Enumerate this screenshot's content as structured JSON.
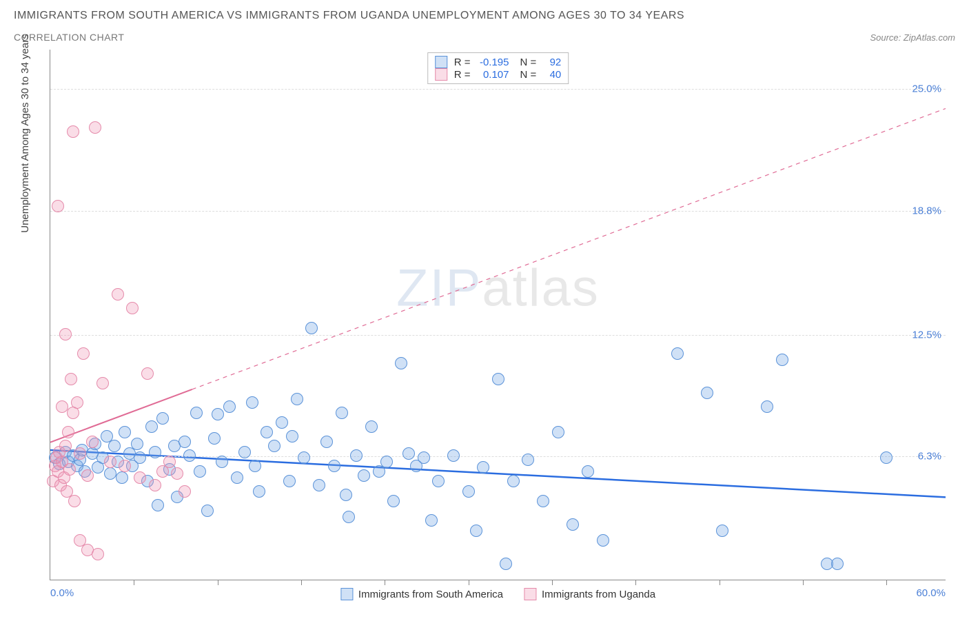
{
  "title": "IMMIGRANTS FROM SOUTH AMERICA VS IMMIGRANTS FROM UGANDA UNEMPLOYMENT AMONG AGES 30 TO 34 YEARS",
  "subtitle": "CORRELATION CHART",
  "source": "Source: ZipAtlas.com",
  "ylabel": "Unemployment Among Ages 30 to 34 years",
  "watermark_bold": "ZIP",
  "watermark_thin": "atlas",
  "chart": {
    "type": "scatter",
    "xlim": [
      0,
      60
    ],
    "ylim": [
      0,
      27
    ],
    "x_tick_positions": [
      5.6,
      11.2,
      16.8,
      22.4,
      28.0,
      33.6,
      39.2,
      44.8,
      50.4,
      56.0
    ],
    "y_gridlines": [
      6.3,
      12.5,
      18.8,
      25.0
    ],
    "y_tick_labels": [
      "6.3%",
      "12.5%",
      "18.8%",
      "25.0%"
    ],
    "x_min_label": "0.0%",
    "x_max_label": "60.0%",
    "background_color": "#ffffff",
    "grid_color": "#dddddd",
    "axis_color": "#888888",
    "tick_label_color": "#4a7fd6",
    "marker_radius": 9,
    "marker_stroke_width": 1.2,
    "series": [
      {
        "name": "Immigrants from South America",
        "label": "Immigrants from South America",
        "fill_color": "rgba(120,170,230,0.35)",
        "stroke_color": "#5a92d8",
        "trend_color": "#2b6de0",
        "trend_width": 2.5,
        "trend_y_at_xmin": 6.6,
        "trend_y_at_xmax": 4.2,
        "trend_solid_x_end": 60,
        "R": "-0.195",
        "N": "92",
        "points": [
          [
            0.3,
            6.2
          ],
          [
            0.6,
            5.9
          ],
          [
            1.0,
            6.5
          ],
          [
            1.2,
            6.0
          ],
          [
            1.5,
            6.3
          ],
          [
            1.8,
            5.8
          ],
          [
            2.0,
            6.1
          ],
          [
            2.1,
            6.6
          ],
          [
            2.3,
            5.5
          ],
          [
            2.8,
            6.4
          ],
          [
            3.0,
            6.9
          ],
          [
            3.2,
            5.7
          ],
          [
            3.5,
            6.2
          ],
          [
            3.8,
            7.3
          ],
          [
            4.0,
            5.4
          ],
          [
            4.3,
            6.8
          ],
          [
            4.5,
            6.0
          ],
          [
            4.8,
            5.2
          ],
          [
            5.0,
            7.5
          ],
          [
            5.3,
            6.4
          ],
          [
            5.5,
            5.8
          ],
          [
            5.8,
            6.9
          ],
          [
            6.0,
            6.2
          ],
          [
            6.5,
            5.0
          ],
          [
            6.8,
            7.8
          ],
          [
            7.0,
            6.5
          ],
          [
            7.2,
            3.8
          ],
          [
            7.5,
            8.2
          ],
          [
            8.0,
            5.6
          ],
          [
            8.3,
            6.8
          ],
          [
            8.5,
            4.2
          ],
          [
            9.0,
            7.0
          ],
          [
            9.3,
            6.3
          ],
          [
            9.8,
            8.5
          ],
          [
            10.0,
            5.5
          ],
          [
            10.5,
            3.5
          ],
          [
            11.0,
            7.2
          ],
          [
            11.5,
            6.0
          ],
          [
            12.0,
            8.8
          ],
          [
            12.5,
            5.2
          ],
          [
            13.0,
            6.5
          ],
          [
            13.5,
            9.0
          ],
          [
            14.0,
            4.5
          ],
          [
            14.5,
            7.5
          ],
          [
            15.0,
            6.8
          ],
          [
            15.5,
            8.0
          ],
          [
            16.0,
            5.0
          ],
          [
            16.5,
            9.2
          ],
          [
            17.0,
            6.2
          ],
          [
            17.5,
            12.8
          ],
          [
            18.0,
            4.8
          ],
          [
            18.5,
            7.0
          ],
          [
            19.0,
            5.8
          ],
          [
            19.5,
            8.5
          ],
          [
            20.0,
            3.2
          ],
          [
            20.5,
            6.3
          ],
          [
            21.0,
            5.3
          ],
          [
            21.5,
            7.8
          ],
          [
            22.0,
            5.5
          ],
          [
            22.5,
            6.0
          ],
          [
            23.0,
            4.0
          ],
          [
            23.5,
            11.0
          ],
          [
            24.0,
            6.4
          ],
          [
            24.5,
            5.8
          ],
          [
            25.0,
            6.2
          ],
          [
            25.5,
            3.0
          ],
          [
            26.0,
            5.0
          ],
          [
            27.0,
            6.3
          ],
          [
            28.0,
            4.5
          ],
          [
            28.5,
            2.5
          ],
          [
            29.0,
            5.7
          ],
          [
            30.0,
            10.2
          ],
          [
            30.5,
            0.8
          ],
          [
            31.0,
            5.0
          ],
          [
            32.0,
            6.1
          ],
          [
            33.0,
            4.0
          ],
          [
            34.0,
            7.5
          ],
          [
            35.0,
            2.8
          ],
          [
            36.0,
            5.5
          ],
          [
            37.0,
            2.0
          ],
          [
            42.0,
            11.5
          ],
          [
            44.0,
            9.5
          ],
          [
            45.0,
            2.5
          ],
          [
            48.0,
            8.8
          ],
          [
            49.0,
            11.2
          ],
          [
            52.0,
            0.8
          ],
          [
            52.7,
            0.8
          ],
          [
            56.0,
            6.2
          ],
          [
            11.2,
            8.4
          ],
          [
            13.7,
            5.8
          ],
          [
            16.2,
            7.3
          ],
          [
            19.8,
            4.3
          ]
        ]
      },
      {
        "name": "Immigrants from Uganda",
        "label": "Immigrants from Uganda",
        "fill_color": "rgba(240,150,180,0.32)",
        "stroke_color": "#e58aaa",
        "trend_color": "#e06b95",
        "trend_width": 2,
        "trend_y_at_xmin": 7.0,
        "trend_y_at_xmax": 24.0,
        "trend_solid_x_end": 9.5,
        "R": "0.107",
        "N": "40",
        "points": [
          [
            0.2,
            5.0
          ],
          [
            0.3,
            5.8
          ],
          [
            0.4,
            6.2
          ],
          [
            0.5,
            5.5
          ],
          [
            0.6,
            6.5
          ],
          [
            0.7,
            4.8
          ],
          [
            0.8,
            6.0
          ],
          [
            0.9,
            5.2
          ],
          [
            1.0,
            6.8
          ],
          [
            1.1,
            4.5
          ],
          [
            1.2,
            7.5
          ],
          [
            1.3,
            5.6
          ],
          [
            1.5,
            8.5
          ],
          [
            1.6,
            4.0
          ],
          [
            1.8,
            9.0
          ],
          [
            2.0,
            6.4
          ],
          [
            2.2,
            11.5
          ],
          [
            2.5,
            5.3
          ],
          [
            1.0,
            12.5
          ],
          [
            0.5,
            19.0
          ],
          [
            2.0,
            2.0
          ],
          [
            2.5,
            1.5
          ],
          [
            1.5,
            22.8
          ],
          [
            3.0,
            23.0
          ],
          [
            3.5,
            10.0
          ],
          [
            4.0,
            6.0
          ],
          [
            4.5,
            14.5
          ],
          [
            5.0,
            5.8
          ],
          [
            5.5,
            13.8
          ],
          [
            6.0,
            5.2
          ],
          [
            6.5,
            10.5
          ],
          [
            7.0,
            4.8
          ],
          [
            7.5,
            5.5
          ],
          [
            8.0,
            6.0
          ],
          [
            8.5,
            5.4
          ],
          [
            9.0,
            4.5
          ],
          [
            3.2,
            1.3
          ],
          [
            0.8,
            8.8
          ],
          [
            1.4,
            10.2
          ],
          [
            2.8,
            7.0
          ]
        ]
      }
    ]
  },
  "legend_top": {
    "rows": [
      {
        "swatch_fill": "rgba(120,170,230,0.35)",
        "swatch_stroke": "#5a92d8",
        "r_label": "R =",
        "r_val": "-0.195",
        "n_label": "N =",
        "n_val": "92"
      },
      {
        "swatch_fill": "rgba(240,150,180,0.32)",
        "swatch_stroke": "#e58aaa",
        "r_label": "R =",
        "r_val": "0.107",
        "n_label": "N =",
        "n_val": "40"
      }
    ]
  },
  "legend_bottom": [
    {
      "swatch_fill": "rgba(120,170,230,0.35)",
      "swatch_stroke": "#5a92d8",
      "label": "Immigrants from South America"
    },
    {
      "swatch_fill": "rgba(240,150,180,0.32)",
      "swatch_stroke": "#e58aaa",
      "label": "Immigrants from Uganda"
    }
  ]
}
